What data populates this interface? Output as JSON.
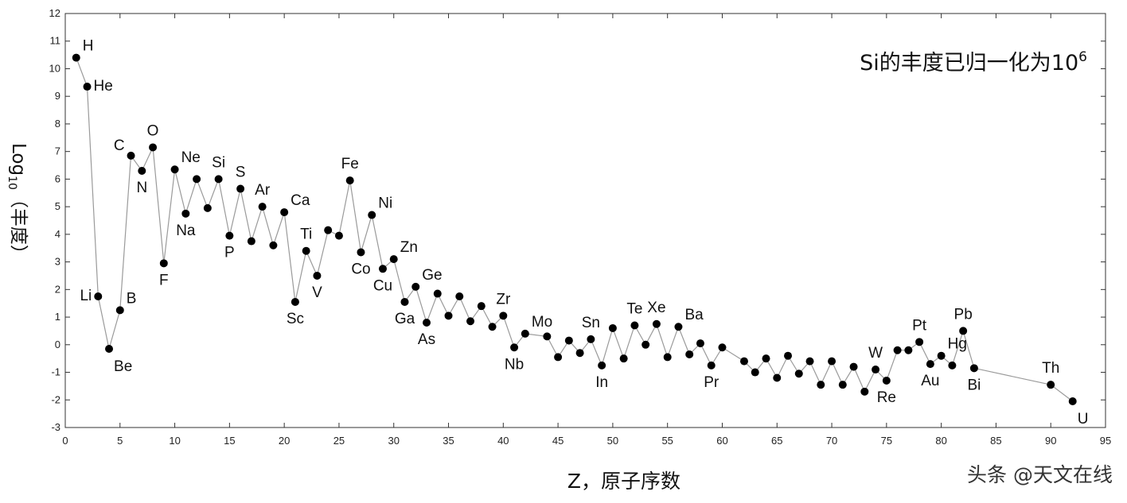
{
  "chart_data": {
    "type": "line",
    "annotation": {
      "text": "Si的丰度已归一化为10",
      "superscript": "6"
    },
    "xlabel": "Z，原子序数",
    "ylabel": {
      "pre": "Log",
      "sub": "10",
      "post": "（丰度）"
    },
    "xlim": [
      0,
      95
    ],
    "ylim": [
      -3,
      12
    ],
    "xticks": [
      0,
      5,
      10,
      15,
      20,
      25,
      30,
      35,
      40,
      45,
      50,
      55,
      60,
      65,
      70,
      75,
      80,
      85,
      90,
      95
    ],
    "yticks": [
      -3,
      -2,
      -1,
      0,
      1,
      2,
      3,
      4,
      5,
      6,
      7,
      8,
      9,
      10,
      11,
      12
    ],
    "grid": false,
    "series": [
      {
        "points": [
          {
            "x": 1,
            "y": 10.4,
            "label": "H",
            "pos": "ne"
          },
          {
            "x": 2,
            "y": 9.35,
            "label": "He",
            "pos": "e"
          },
          {
            "x": 3,
            "y": 1.75,
            "label": "Li",
            "pos": "w"
          },
          {
            "x": 4,
            "y": -0.15,
            "label": "Be",
            "pos": "se"
          },
          {
            "x": 5,
            "y": 1.25,
            "label": "B",
            "pos": "ne"
          },
          {
            "x": 6,
            "y": 6.85,
            "label": "C",
            "pos": "nw"
          },
          {
            "x": 7,
            "y": 6.3,
            "label": "N",
            "pos": "s"
          },
          {
            "x": 8,
            "y": 7.15,
            "label": "O",
            "pos": "n"
          },
          {
            "x": 9,
            "y": 2.95,
            "label": "F",
            "pos": "s"
          },
          {
            "x": 10,
            "y": 6.35,
            "label": "Ne",
            "pos": "ne"
          },
          {
            "x": 11,
            "y": 4.75,
            "label": "Na",
            "pos": "s"
          },
          {
            "x": 12,
            "y": 6.0
          },
          {
            "x": 13,
            "y": 4.95
          },
          {
            "x": 14,
            "y": 6.0,
            "label": "Si",
            "pos": "n"
          },
          {
            "x": 15,
            "y": 3.95,
            "label": "P",
            "pos": "s"
          },
          {
            "x": 16,
            "y": 5.65,
            "label": "S",
            "pos": "n"
          },
          {
            "x": 17,
            "y": 3.75
          },
          {
            "x": 18,
            "y": 5.0,
            "label": "Ar",
            "pos": "n"
          },
          {
            "x": 19,
            "y": 3.6
          },
          {
            "x": 20,
            "y": 4.8,
            "label": "Ca",
            "pos": "ne"
          },
          {
            "x": 21,
            "y": 1.55,
            "label": "Sc",
            "pos": "s"
          },
          {
            "x": 22,
            "y": 3.4,
            "label": "Ti",
            "pos": "n"
          },
          {
            "x": 23,
            "y": 2.5,
            "label": "V",
            "pos": "s"
          },
          {
            "x": 24,
            "y": 4.15
          },
          {
            "x": 25,
            "y": 3.95
          },
          {
            "x": 26,
            "y": 5.95,
            "label": "Fe",
            "pos": "n"
          },
          {
            "x": 27,
            "y": 3.35,
            "label": "Co",
            "pos": "s"
          },
          {
            "x": 28,
            "y": 4.7,
            "label": "Ni",
            "pos": "ne"
          },
          {
            "x": 29,
            "y": 2.75,
            "label": "Cu",
            "pos": "s"
          },
          {
            "x": 30,
            "y": 3.1,
            "label": "Zn",
            "pos": "ne"
          },
          {
            "x": 31,
            "y": 1.55,
            "label": "Ga",
            "pos": "s"
          },
          {
            "x": 32,
            "y": 2.1,
            "label": "Ge",
            "pos": "ne"
          },
          {
            "x": 33,
            "y": 0.8,
            "label": "As",
            "pos": "s"
          },
          {
            "x": 34,
            "y": 1.85
          },
          {
            "x": 35,
            "y": 1.05
          },
          {
            "x": 36,
            "y": 1.75
          },
          {
            "x": 37,
            "y": 0.85
          },
          {
            "x": 38,
            "y": 1.4
          },
          {
            "x": 39,
            "y": 0.65
          },
          {
            "x": 40,
            "y": 1.05,
            "label": "Zr",
            "pos": "n"
          },
          {
            "x": 41,
            "y": -0.1,
            "label": "Nb",
            "pos": "s"
          },
          {
            "x": 42,
            "y": 0.4,
            "label": "Mo",
            "pos": "ne"
          },
          {
            "x": 44,
            "y": 0.3
          },
          {
            "x": 45,
            "y": -0.45
          },
          {
            "x": 46,
            "y": 0.15
          },
          {
            "x": 47,
            "y": -0.3
          },
          {
            "x": 48,
            "y": 0.2,
            "label": "Sn",
            "pos": "n"
          },
          {
            "x": 49,
            "y": -0.75,
            "label": "In",
            "pos": "s"
          },
          {
            "x": 50,
            "y": 0.6
          },
          {
            "x": 51,
            "y": -0.5
          },
          {
            "x": 52,
            "y": 0.7,
            "label": "Te",
            "pos": "n"
          },
          {
            "x": 53,
            "y": 0.0
          },
          {
            "x": 54,
            "y": 0.75,
            "label": "Xe",
            "pos": "n"
          },
          {
            "x": 55,
            "y": -0.45
          },
          {
            "x": 56,
            "y": 0.65,
            "label": "Ba",
            "pos": "ne"
          },
          {
            "x": 57,
            "y": -0.35
          },
          {
            "x": 58,
            "y": 0.05
          },
          {
            "x": 59,
            "y": -0.75,
            "label": "Pr",
            "pos": "s"
          },
          {
            "x": 60,
            "y": -0.1
          },
          {
            "x": 62,
            "y": -0.6
          },
          {
            "x": 63,
            "y": -1.0
          },
          {
            "x": 64,
            "y": -0.5
          },
          {
            "x": 65,
            "y": -1.2
          },
          {
            "x": 66,
            "y": -0.4
          },
          {
            "x": 67,
            "y": -1.05
          },
          {
            "x": 68,
            "y": -0.6
          },
          {
            "x": 69,
            "y": -1.45
          },
          {
            "x": 70,
            "y": -0.6
          },
          {
            "x": 71,
            "y": -1.45
          },
          {
            "x": 72,
            "y": -0.8
          },
          {
            "x": 73,
            "y": -1.7
          },
          {
            "x": 74,
            "y": -0.9,
            "label": "W",
            "pos": "n"
          },
          {
            "x": 75,
            "y": -1.3,
            "label": "Re",
            "pos": "s"
          },
          {
            "x": 76,
            "y": -0.2
          },
          {
            "x": 77,
            "y": -0.2
          },
          {
            "x": 78,
            "y": 0.1,
            "label": "Pt",
            "pos": "n"
          },
          {
            "x": 79,
            "y": -0.7,
            "label": "Au",
            "pos": "s"
          },
          {
            "x": 80,
            "y": -0.4,
            "label": "Hg",
            "pos": "ne"
          },
          {
            "x": 81,
            "y": -0.75
          },
          {
            "x": 82,
            "y": 0.5,
            "label": "Pb",
            "pos": "n"
          },
          {
            "x": 83,
            "y": -0.85,
            "label": "Bi",
            "pos": "s"
          },
          {
            "x": 90,
            "y": -1.45,
            "label": "Th",
            "pos": "n"
          },
          {
            "x": 92,
            "y": -2.05,
            "label": "U",
            "pos": "se"
          }
        ]
      }
    ],
    "colors": {
      "line": "#9a9a9a",
      "marker": "#000000",
      "axis": "#333333"
    }
  },
  "watermark": "头条 @天文在线"
}
